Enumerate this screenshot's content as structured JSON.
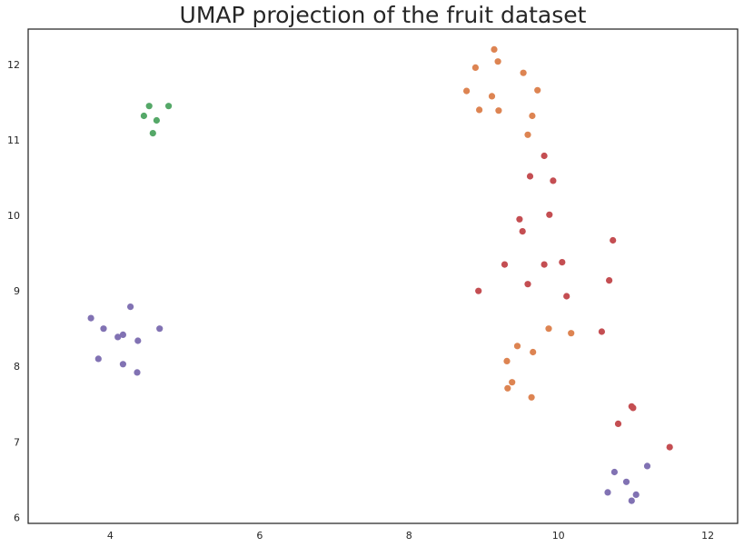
{
  "chart_data": {
    "type": "scatter",
    "title": "UMAP projection of the fruit dataset",
    "xlabel": "",
    "ylabel": "",
    "xlim": [
      2.9,
      12.4
    ],
    "ylim": [
      5.92,
      12.47
    ],
    "xticks": [
      4,
      6,
      8,
      10,
      12
    ],
    "yticks": [
      6,
      7,
      8,
      9,
      10,
      11,
      12
    ],
    "grid": false,
    "legend": "none",
    "series": [
      {
        "color": "#55a868",
        "points": [
          [
            4.52,
            11.45
          ],
          [
            4.78,
            11.45
          ],
          [
            4.45,
            11.32
          ],
          [
            4.62,
            11.26
          ],
          [
            4.57,
            11.09
          ]
        ]
      },
      {
        "color": "#dd8452",
        "points": [
          [
            9.14,
            12.2
          ],
          [
            9.19,
            12.04
          ],
          [
            8.89,
            11.96
          ],
          [
            9.53,
            11.89
          ],
          [
            8.77,
            11.65
          ],
          [
            9.72,
            11.66
          ],
          [
            9.11,
            11.58
          ],
          [
            8.94,
            11.4
          ],
          [
            9.2,
            11.39
          ],
          [
            9.65,
            11.32
          ],
          [
            9.59,
            11.07
          ],
          [
            9.87,
            8.5
          ],
          [
            10.17,
            8.44
          ],
          [
            9.45,
            8.27
          ],
          [
            9.66,
            8.19
          ],
          [
            9.31,
            8.07
          ],
          [
            9.38,
            7.79
          ],
          [
            9.32,
            7.71
          ],
          [
            9.64,
            7.59
          ]
        ]
      },
      {
        "color": "#c44e52",
        "points": [
          [
            9.81,
            10.79
          ],
          [
            9.62,
            10.52
          ],
          [
            9.93,
            10.46
          ],
          [
            9.88,
            10.01
          ],
          [
            9.48,
            9.95
          ],
          [
            9.52,
            9.79
          ],
          [
            10.73,
            9.67
          ],
          [
            9.28,
            9.35
          ],
          [
            9.81,
            9.35
          ],
          [
            10.05,
            9.38
          ],
          [
            10.68,
            9.14
          ],
          [
            9.59,
            9.09
          ],
          [
            8.93,
            9.0
          ],
          [
            10.11,
            8.93
          ],
          [
            10.58,
            8.46
          ],
          [
            10.98,
            7.47
          ],
          [
            11.0,
            7.45
          ],
          [
            10.8,
            7.24
          ],
          [
            11.49,
            6.93
          ]
        ]
      },
      {
        "color": "#8172b3",
        "points": [
          [
            3.74,
            8.64
          ],
          [
            4.27,
            8.79
          ],
          [
            3.91,
            8.5
          ],
          [
            4.66,
            8.5
          ],
          [
            4.17,
            8.42
          ],
          [
            4.1,
            8.39
          ],
          [
            4.37,
            8.34
          ],
          [
            3.84,
            8.1
          ],
          [
            4.17,
            8.03
          ],
          [
            4.36,
            7.92
          ],
          [
            10.75,
            6.6
          ],
          [
            11.19,
            6.68
          ],
          [
            10.91,
            6.47
          ],
          [
            10.66,
            6.33
          ],
          [
            11.04,
            6.3
          ],
          [
            10.98,
            6.22
          ]
        ]
      }
    ]
  }
}
